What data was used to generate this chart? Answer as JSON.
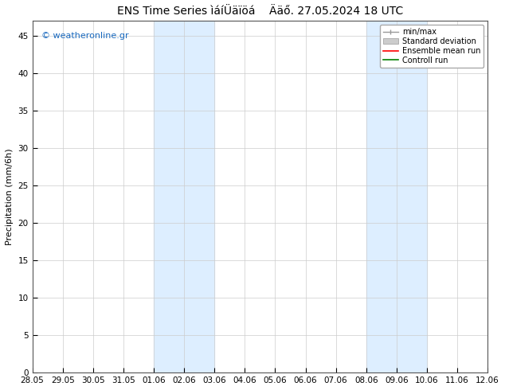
{
  "title": "ENS Time Series ìáíÜäïöá    Ääő. 27.05.2024 18 UTC",
  "ylabel": "Precipitation (mm/6h)",
  "watermark": "© weatheronline.gr",
  "x_tick_labels": [
    "28.05",
    "29.05",
    "30.05",
    "31.05",
    "01.06",
    "02.06",
    "03.06",
    "04.06",
    "05.06",
    "06.06",
    "07.06",
    "08.06",
    "09.06",
    "10.06",
    "11.06",
    "12.06"
  ],
  "ylim": [
    0,
    47
  ],
  "yticks": [
    0,
    5,
    10,
    15,
    20,
    25,
    30,
    35,
    40,
    45
  ],
  "shaded_bands": [
    {
      "xstart": 4,
      "xend": 6
    },
    {
      "xstart": 11,
      "xend": 13
    }
  ],
  "shade_color": "#ddeeff",
  "background_color": "#ffffff",
  "title_fontsize": 10,
  "watermark_fontsize": 8,
  "watermark_color": "#1a6abf",
  "axis_label_fontsize": 8,
  "tick_fontsize": 7.5
}
